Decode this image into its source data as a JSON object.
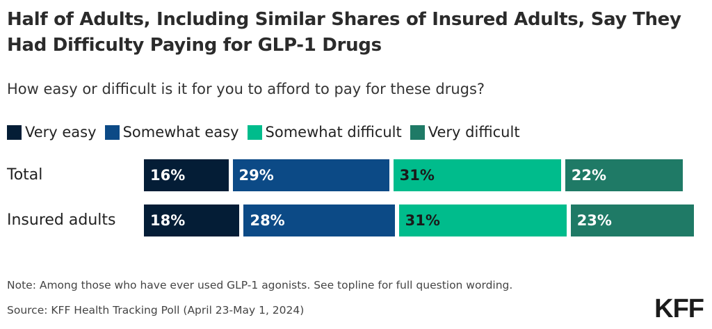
{
  "chart_data": {
    "type": "bar",
    "orientation": "horizontal",
    "stacked": true,
    "title": "Half of Adults, Including Similar Shares of Insured Adults, Say They Had Difficulty Paying for GLP-1 Drugs",
    "subtitle": "How easy or difficult is it for you to afford to pay for these drugs?",
    "categories": [
      "Total",
      "Insured adults"
    ],
    "series": [
      {
        "name": "Very easy",
        "color": "#041d36",
        "values": [
          16,
          18
        ],
        "labels": [
          "16%",
          "18%"
        ]
      },
      {
        "name": "Somewhat easy",
        "color": "#0c4a86",
        "values": [
          29,
          28
        ],
        "labels": [
          "29%",
          "28%"
        ]
      },
      {
        "name": "Somewhat difficult",
        "color": "#00bc8c",
        "values": [
          31,
          31
        ],
        "labels": [
          "31%",
          "31%"
        ]
      },
      {
        "name": "Very difficult",
        "color": "#1f7a66",
        "values": [
          22,
          23
        ],
        "labels": [
          "22%",
          "23%"
        ]
      }
    ],
    "legend_position": "top-left",
    "grid": false,
    "note": "Note: Among those who have ever used GLP-1 agonists. See topline for full question wording.",
    "source": "Source: KFF Health Tracking Poll (April 23-May 1, 2024)"
  },
  "logo_text": "KFF"
}
